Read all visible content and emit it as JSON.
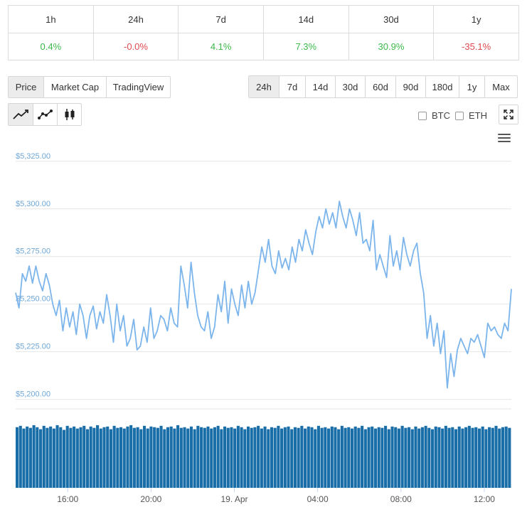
{
  "change_table": {
    "headers": [
      "1h",
      "24h",
      "7d",
      "14d",
      "30d",
      "1y"
    ],
    "values": [
      {
        "text": "0.4%",
        "dir": "pos"
      },
      {
        "text": "-0.0%",
        "dir": "neg"
      },
      {
        "text": "4.1%",
        "dir": "pos"
      },
      {
        "text": "7.3%",
        "dir": "pos"
      },
      {
        "text": "30.9%",
        "dir": "pos"
      },
      {
        "text": "-35.1%",
        "dir": "neg"
      }
    ]
  },
  "chart_type_tabs": {
    "items": [
      "Price",
      "Market Cap",
      "TradingView"
    ],
    "active": "Price"
  },
  "range_tabs": {
    "items": [
      "24h",
      "7d",
      "14d",
      "30d",
      "60d",
      "90d",
      "180d",
      "1y",
      "Max"
    ],
    "active": "24h"
  },
  "chart_style_buttons": [
    "line-chart-icon",
    "ohlc-line-icon",
    "candlestick-icon"
  ],
  "compare": {
    "btc_label": "BTC",
    "eth_label": "ETH"
  },
  "colors": {
    "line": "#7cb5ec",
    "volume": "#1a6ea8",
    "positive": "#3cb94a",
    "negative": "#e0494d",
    "axis_label": "#6ea7d6"
  },
  "chart_data": {
    "type": "line",
    "y_ticks": [
      "$5,325.00",
      "$5,300.00",
      "$5,275.00",
      "$5,250.00",
      "$5,225.00",
      "$5,200.00"
    ],
    "y_tick_values": [
      5325,
      5300,
      5275,
      5250,
      5225,
      5200
    ],
    "ylim": [
      5195,
      5335
    ],
    "x_ticks": [
      "16:00",
      "20:00",
      "19. Apr",
      "04:00",
      "08:00",
      "12:00"
    ],
    "x_tick_hours": [
      16,
      20,
      24,
      28,
      32,
      36
    ],
    "xlim_hours": [
      13.5,
      37.3
    ],
    "grid": true,
    "series": [
      {
        "values": [
          5256,
          5248,
          5266,
          5262,
          5270,
          5261,
          5270,
          5262,
          5257,
          5266,
          5260,
          5250,
          5244,
          5252,
          5236,
          5248,
          5238,
          5246,
          5234,
          5250,
          5244,
          5232,
          5244,
          5249,
          5237,
          5246,
          5240,
          5255,
          5244,
          5230,
          5250,
          5236,
          5244,
          5228,
          5232,
          5242,
          5226,
          5228,
          5238,
          5230,
          5248,
          5232,
          5236,
          5244,
          5242,
          5236,
          5248,
          5240,
          5238,
          5270,
          5260,
          5248,
          5272,
          5256,
          5244,
          5238,
          5236,
          5246,
          5232,
          5238,
          5255,
          5246,
          5262,
          5240,
          5258,
          5250,
          5244,
          5260,
          5248,
          5262,
          5250,
          5256,
          5268,
          5280,
          5272,
          5284,
          5270,
          5266,
          5278,
          5269,
          5274,
          5268,
          5280,
          5272,
          5284,
          5278,
          5289,
          5282,
          5276,
          5288,
          5296,
          5290,
          5300,
          5292,
          5298,
          5290,
          5304,
          5296,
          5290,
          5300,
          5294,
          5286,
          5298,
          5282,
          5284,
          5278,
          5294,
          5268,
          5276,
          5270,
          5264,
          5286,
          5270,
          5278,
          5268,
          5285,
          5276,
          5270,
          5278,
          5282,
          5266,
          5256,
          5232,
          5244,
          5228,
          5240,
          5224,
          5236,
          5206,
          5224,
          5212,
          5226,
          5232,
          5228,
          5224,
          5232,
          5230,
          5234,
          5228,
          5222,
          5240,
          5236,
          5238,
          5234,
          5232,
          5240,
          5236,
          5258
        ]
      }
    ],
    "volume": {
      "label": "volume",
      "values": [
        0.9,
        0.92,
        0.88,
        0.91,
        0.89,
        0.93,
        0.9,
        0.87,
        0.92,
        0.89,
        0.91,
        0.88,
        0.93,
        0.9,
        0.86,
        0.92,
        0.89,
        0.91,
        0.88,
        0.9,
        0.92,
        0.87,
        0.91,
        0.89,
        0.93,
        0.88,
        0.9,
        0.91,
        0.87,
        0.92,
        0.89,
        0.9,
        0.88,
        0.91,
        0.93,
        0.89,
        0.9,
        0.87,
        0.92,
        0.88,
        0.91,
        0.9,
        0.89,
        0.92,
        0.87,
        0.9,
        0.91,
        0.88,
        0.93,
        0.89,
        0.9,
        0.88,
        0.91,
        0.87,
        0.92,
        0.9,
        0.89,
        0.91,
        0.88,
        0.9,
        0.92,
        0.87,
        0.91,
        0.89,
        0.9,
        0.88,
        0.92,
        0.9,
        0.87,
        0.91,
        0.89,
        0.9,
        0.92,
        0.88,
        0.91,
        0.87,
        0.9,
        0.89,
        0.92,
        0.88,
        0.9,
        0.91,
        0.87,
        0.9,
        0.89,
        0.92,
        0.88,
        0.91,
        0.9,
        0.87,
        0.92,
        0.89,
        0.9,
        0.88,
        0.91,
        0.9,
        0.87,
        0.92,
        0.89,
        0.9,
        0.88,
        0.91,
        0.89,
        0.92,
        0.87,
        0.9,
        0.91,
        0.88,
        0.9,
        0.89,
        0.92,
        0.87,
        0.91,
        0.9,
        0.88,
        0.92,
        0.89,
        0.9,
        0.87,
        0.91,
        0.88,
        0.9,
        0.92,
        0.89,
        0.87,
        0.91,
        0.9,
        0.88,
        0.92,
        0.89,
        0.9,
        0.87,
        0.91,
        0.88,
        0.9,
        0.92,
        0.89,
        0.9,
        0.88,
        0.91,
        0.87,
        0.9,
        0.89,
        0.92,
        0.88,
        0.9,
        0.91,
        0.89
      ]
    }
  }
}
